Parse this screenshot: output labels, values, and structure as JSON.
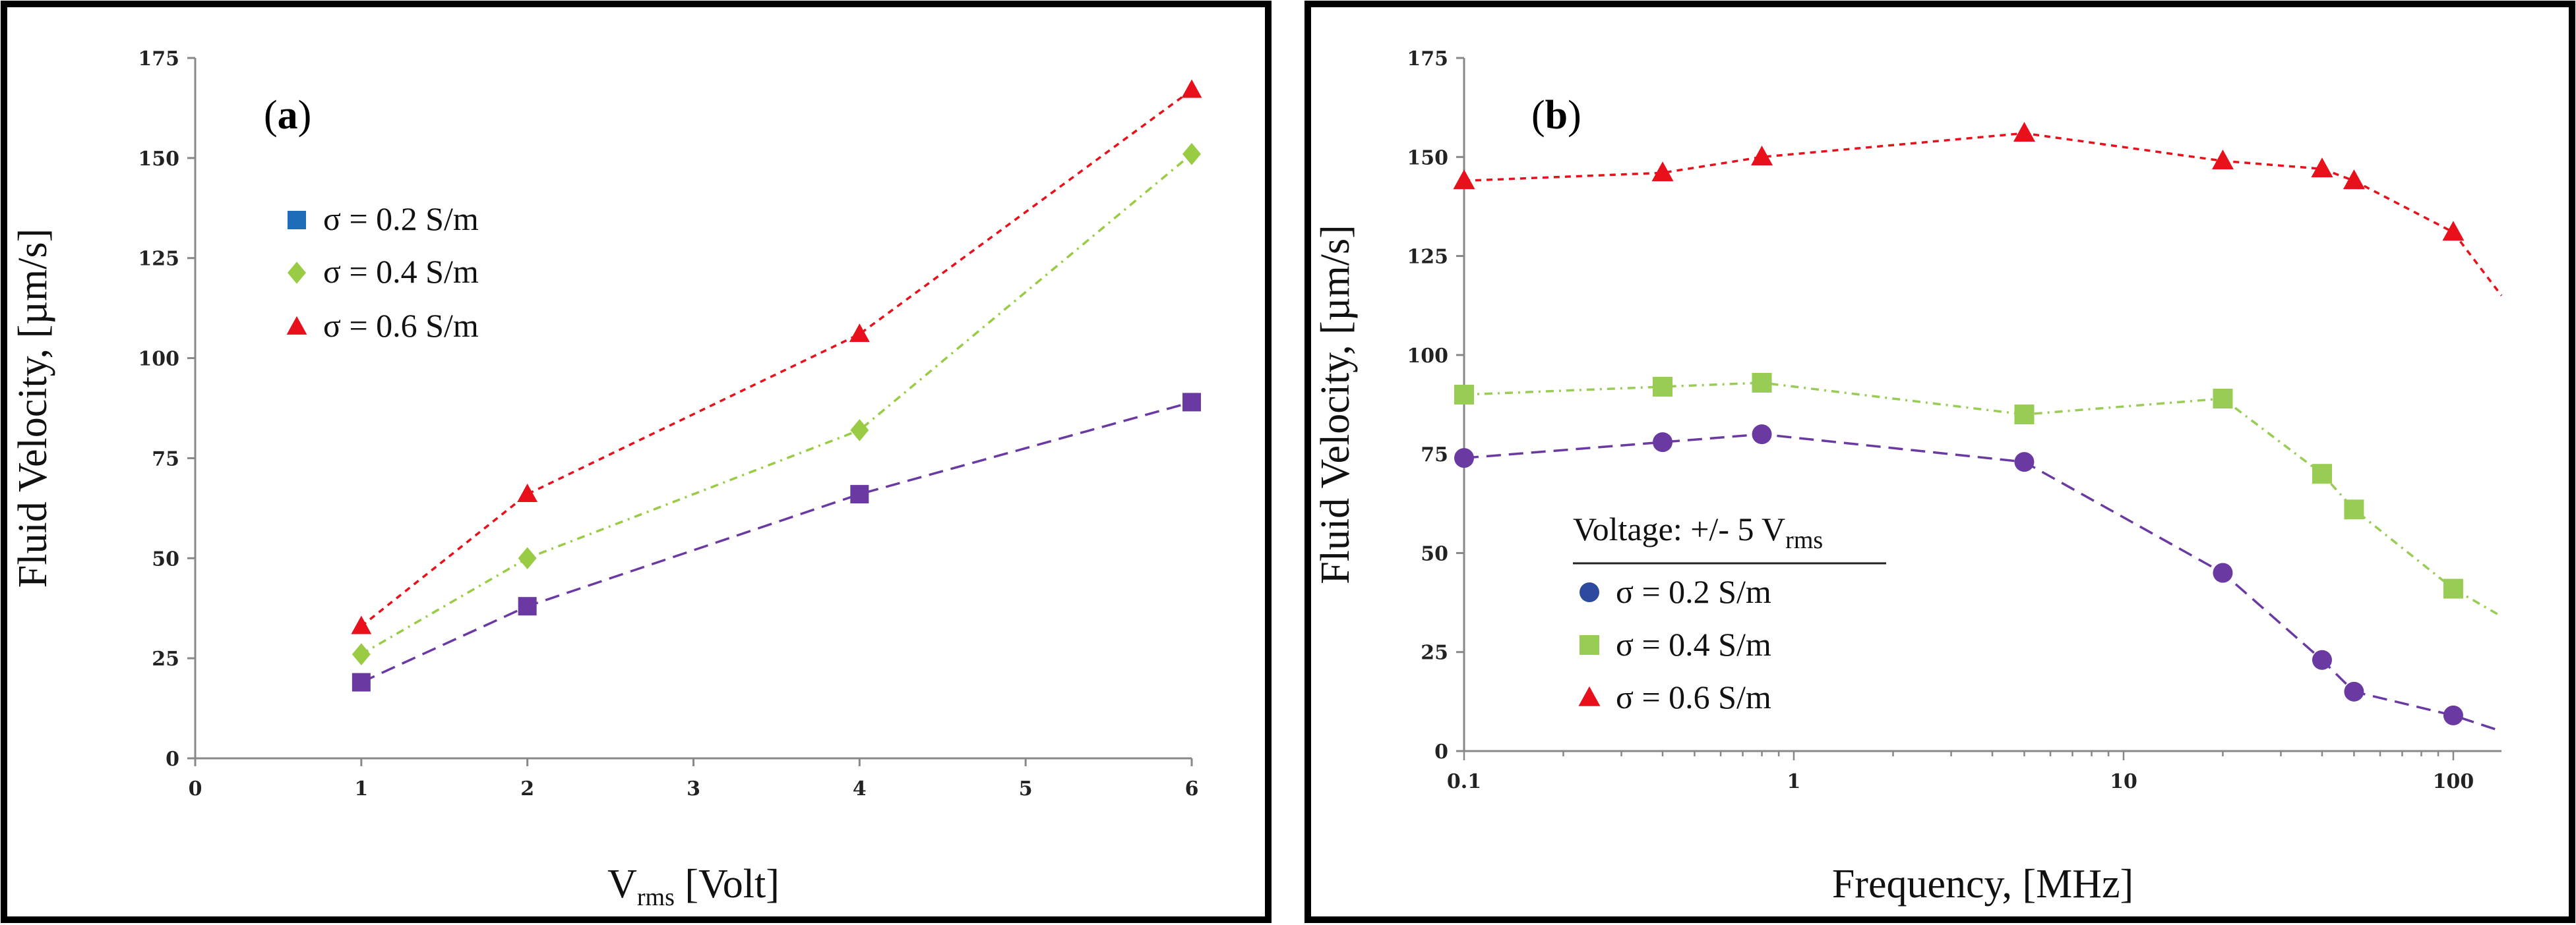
{
  "chart_data": [
    {
      "type": "line",
      "panel_label": "a",
      "panel_label_open": "(",
      "panel_label_close": ")",
      "xlabel_main": "V",
      "xlabel_sub": "rms",
      "xlabel_rest": " [Volt]",
      "ylabel": "Fluid Velocity,  [µm/s]",
      "xlim": [
        0,
        6
      ],
      "ylim": [
        0,
        175
      ],
      "x_ticks": [
        "0",
        "1",
        "2",
        "3",
        "4",
        "5",
        "6"
      ],
      "y_ticks": [
        "0",
        "25",
        "50",
        "75",
        "100",
        "125",
        "150",
        "175"
      ],
      "x": [
        1,
        2,
        4,
        6
      ],
      "series": [
        {
          "name": "σ = 0.2 S/m",
          "values": [
            19,
            38,
            66,
            89
          ],
          "marker": "square",
          "marker_color": "#6a3aa2",
          "line_color": "#6a3aa2",
          "legend_color": "#1f6db8",
          "dash": "22 12"
        },
        {
          "name": "σ = 0.4 S/m",
          "values": [
            26,
            50,
            82,
            151
          ],
          "marker": "diamond",
          "marker_color": "#99cc44",
          "line_color": "#99cc44",
          "legend_color": "#99cc44",
          "dash": "12 8 3 8"
        },
        {
          "name": "σ = 0.6 S/m",
          "values": [
            33,
            66,
            106,
            167
          ],
          "marker": "triangle",
          "marker_color": "#e8101a",
          "line_color": "#e8101a",
          "legend_color": "#e8101a",
          "dash": "9 8"
        }
      ]
    },
    {
      "type": "line",
      "x_scale": "log",
      "panel_label": "b",
      "panel_label_open": "(",
      "panel_label_close": ")",
      "xlabel": "Frequency,  [MHz]",
      "ylabel": "Fluid Velocity,  [µm/s]",
      "xlim": [
        0.1,
        140
      ],
      "ylim": [
        0,
        175
      ],
      "x_ticks": [
        "0.1",
        "1",
        "10",
        "100"
      ],
      "x_tick_values": [
        0.1,
        1,
        10,
        100
      ],
      "y_ticks": [
        "0",
        "25",
        "50",
        "75",
        "100",
        "125",
        "150",
        "175"
      ],
      "legend_title_main": "Voltage:  +/- 5 V",
      "legend_title_sub": "rms",
      "series": [
        {
          "name": "σ = 0.2 S/m",
          "x": [
            0.1,
            0.4,
            0.8,
            5,
            20,
            40,
            50,
            100
          ],
          "values": [
            74,
            78,
            80,
            73,
            45,
            23,
            15,
            9
          ],
          "line_end": [
            140,
            5
          ],
          "marker": "circle",
          "marker_color": "#6a3aa2",
          "line_color": "#6a3aa2",
          "legend_color": "#2e4a9e",
          "dash": "22 12"
        },
        {
          "name": "σ = 0.4 S/m",
          "x": [
            0.1,
            0.4,
            0.8,
            5,
            20,
            40,
            50,
            100
          ],
          "values": [
            90,
            92,
            93,
            85,
            89,
            70,
            61,
            41
          ],
          "line_end": [
            140,
            34
          ],
          "marker": "square",
          "marker_color": "#99cc55",
          "line_color": "#99cc55",
          "legend_color": "#99cc55",
          "dash": "12 8 3 8"
        },
        {
          "name": "σ = 0.6 S/m",
          "x": [
            0.1,
            0.4,
            0.8,
            5,
            20,
            40,
            50,
            100
          ],
          "values": [
            144,
            146,
            150,
            156,
            149,
            147,
            144,
            131
          ],
          "line_end": [
            140,
            115
          ],
          "marker": "triangle",
          "marker_color": "#e8101a",
          "line_color": "#e8101a",
          "legend_color": "#e8101a",
          "dash": "9 8"
        }
      ]
    }
  ]
}
